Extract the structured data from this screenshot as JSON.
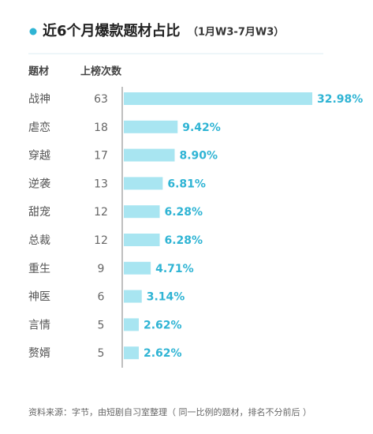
{
  "chart_data": {
    "type": "bar",
    "title": "近6个月爆款题材占比",
    "subtitle": "（1月W3-7月W3）",
    "column_headers": [
      "题材",
      "上榜次数"
    ],
    "categories": [
      "战神",
      "虐恋",
      "穿越",
      "逆袭",
      "甜宠",
      "总裁",
      "重生",
      "神医",
      "言情",
      "赘婿"
    ],
    "counts": [
      63,
      18,
      17,
      13,
      12,
      12,
      9,
      6,
      5,
      5
    ],
    "values": [
      32.98,
      9.42,
      8.9,
      6.81,
      6.28,
      6.28,
      4.71,
      3.14,
      2.62,
      2.62
    ],
    "value_labels": [
      "32.98%",
      "9.42%",
      "8.90%",
      "6.81%",
      "6.28%",
      "6.28%",
      "4.71%",
      "3.14%",
      "2.62%",
      "2.62%"
    ],
    "color": "#a8e5f1",
    "note": "资料来源：字节，由短剧自习室整理（ 同一比例的题材，排名不分前后 ）"
  }
}
